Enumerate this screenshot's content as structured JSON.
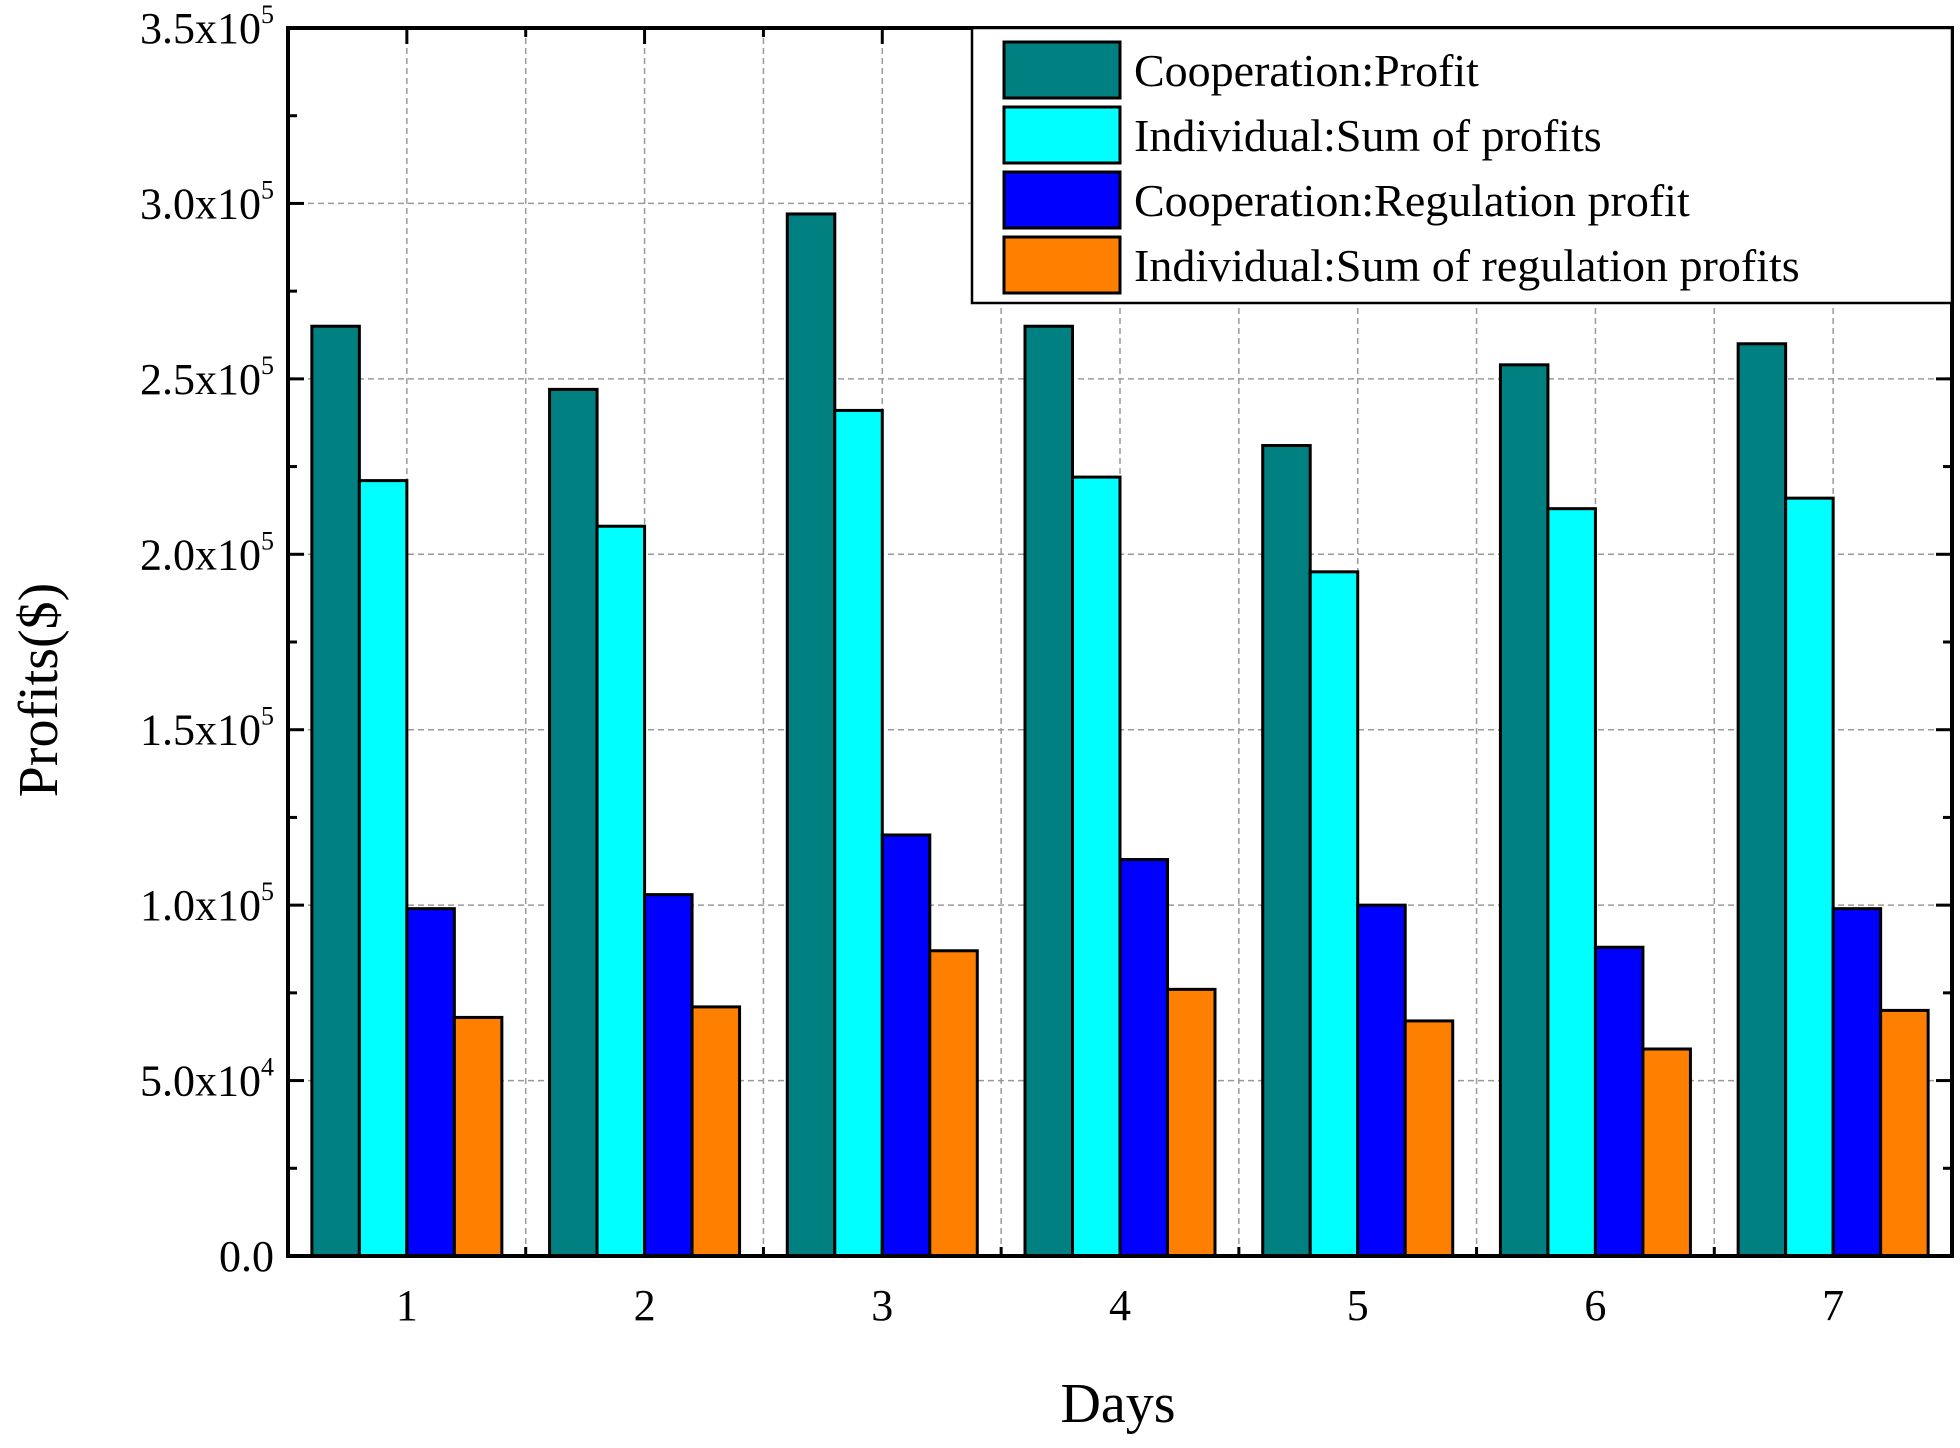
{
  "chart_data": {
    "type": "bar",
    "xlabel": "Days",
    "ylabel": "Profits($)",
    "categories": [
      "1",
      "2",
      "3",
      "4",
      "5",
      "6",
      "7"
    ],
    "ylim": [
      0,
      350000
    ],
    "y_ticks": [
      {
        "value": 0,
        "label": "0.0",
        "exp": ""
      },
      {
        "value": 50000,
        "label": "5.0x10",
        "exp": "4"
      },
      {
        "value": 100000,
        "label": "1.0x10",
        "exp": "5"
      },
      {
        "value": 150000,
        "label": "1.5x10",
        "exp": "5"
      },
      {
        "value": 200000,
        "label": "2.0x10",
        "exp": "5"
      },
      {
        "value": 250000,
        "label": "2.5x10",
        "exp": "5"
      },
      {
        "value": 300000,
        "label": "3.0x10",
        "exp": "5"
      },
      {
        "value": 350000,
        "label": "3.5x10",
        "exp": "5"
      }
    ],
    "grid": true,
    "legend_position": "top-right",
    "series": [
      {
        "name": "Cooperation:Profit",
        "color": "#008080",
        "values": [
          265000,
          247000,
          297000,
          265000,
          231000,
          254000,
          260000
        ]
      },
      {
        "name": "Individual:Sum of profits",
        "color": "#00ffff",
        "values": [
          221000,
          208000,
          241000,
          222000,
          195000,
          213000,
          216000
        ]
      },
      {
        "name": "Cooperation:Regulation profit",
        "color": "#0000ff",
        "values": [
          99000,
          103000,
          120000,
          113000,
          100000,
          88000,
          99000
        ]
      },
      {
        "name": "Individual:Sum of regulation profits",
        "color": "#ff7f00",
        "values": [
          68000,
          71000,
          87000,
          76000,
          67000,
          59000,
          70000
        ]
      }
    ]
  }
}
